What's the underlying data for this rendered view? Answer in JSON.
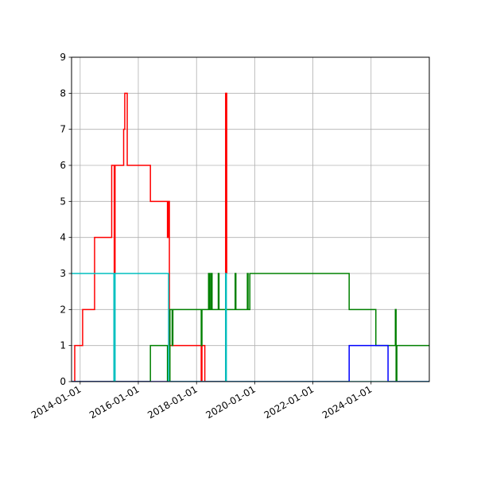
{
  "chart_data": {
    "type": "line",
    "title": "",
    "xlabel": "",
    "ylabel": "",
    "x_axis_type": "date",
    "xlim": [
      "2013-09-15",
      "2026-01-01"
    ],
    "ylim": [
      0,
      9
    ],
    "grid": true,
    "legend": "none",
    "x_ticks": [
      "2014-01-01",
      "2016-01-01",
      "2018-01-01",
      "2020-01-01",
      "2022-01-01",
      "2024-01-01"
    ],
    "y_ticks": [
      "0",
      "1",
      "2",
      "3",
      "4",
      "5",
      "6",
      "7",
      "8",
      "9"
    ],
    "series": [
      {
        "color": "#ff0000",
        "step": true,
        "points": [
          [
            "2013-10-20",
            0
          ],
          [
            "2013-10-25",
            1
          ],
          [
            "2014-02-01",
            2
          ],
          [
            "2014-07-01",
            4
          ],
          [
            "2015-02-01",
            6
          ],
          [
            "2015-03-05",
            3
          ],
          [
            "2015-03-15",
            6
          ],
          [
            "2015-07-01",
            7
          ],
          [
            "2015-07-15",
            8
          ],
          [
            "2015-08-15",
            6
          ],
          [
            "2016-06-01",
            5
          ],
          [
            "2017-01-01",
            4
          ],
          [
            "2017-01-10",
            5
          ],
          [
            "2017-01-25",
            1
          ],
          [
            "2018-03-01",
            0
          ],
          [
            "2018-03-10",
            1
          ],
          [
            "2018-04-15",
            0
          ],
          [
            "2018-06-01",
            0
          ],
          [
            "2019-01-01",
            8
          ],
          [
            "2019-01-15",
            3
          ]
        ]
      },
      {
        "color": "#008000",
        "step": true,
        "points": [
          [
            "2013-09-15",
            0
          ],
          [
            "2016-06-01",
            1
          ],
          [
            "2017-01-01",
            0
          ],
          [
            "2017-01-20",
            0
          ],
          [
            "2017-02-01",
            2
          ],
          [
            "2017-03-01",
            1
          ],
          [
            "2017-03-10",
            2
          ],
          [
            "2018-03-01",
            1
          ],
          [
            "2018-03-10",
            2
          ],
          [
            "2018-06-01",
            3
          ],
          [
            "2018-06-15",
            2
          ],
          [
            "2018-07-01",
            3
          ],
          [
            "2018-07-15",
            2
          ],
          [
            "2018-10-01",
            3
          ],
          [
            "2018-10-10",
            2
          ],
          [
            "2019-05-01",
            3
          ],
          [
            "2019-05-10",
            2
          ],
          [
            "2019-10-01",
            3
          ],
          [
            "2019-10-10",
            2
          ],
          [
            "2019-11-01",
            3
          ],
          [
            "2023-04-01",
            2
          ],
          [
            "2024-03-01",
            1
          ],
          [
            "2024-11-01",
            2
          ],
          [
            "2024-11-10",
            0
          ],
          [
            "2024-11-20",
            1
          ],
          [
            "2026-01-01",
            1
          ]
        ]
      },
      {
        "color": "#0000ff",
        "step": true,
        "points": [
          [
            "2013-09-15",
            0
          ],
          [
            "2023-04-01",
            1
          ],
          [
            "2024-08-01",
            0
          ],
          [
            "2026-01-01",
            0
          ]
        ]
      },
      {
        "color": "#00bfbf",
        "step": true,
        "points": [
          [
            "2013-09-15",
            3
          ],
          [
            "2015-03-01",
            0
          ],
          [
            "2015-03-15",
            3
          ],
          [
            "2017-01-15",
            0
          ],
          [
            "2017-01-25",
            0
          ],
          [
            "2019-01-01",
            3
          ],
          [
            "2019-01-10",
            0
          ],
          [
            "2026-01-01",
            0
          ]
        ]
      }
    ]
  }
}
